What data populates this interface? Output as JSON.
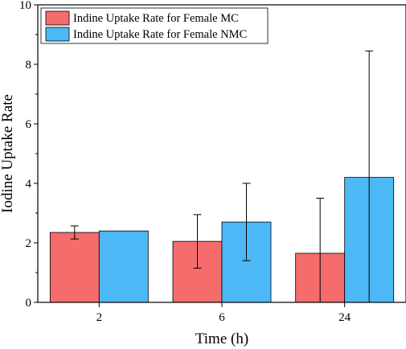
{
  "chart_data": {
    "type": "bar",
    "title": "",
    "xlabel": "Time (h)",
    "ylabel": "Iodine Uptake Rate",
    "categories": [
      "2",
      "6",
      "24"
    ],
    "ylim": [
      0,
      10
    ],
    "yticks": [
      "0",
      "2",
      "4",
      "6",
      "8",
      "10"
    ],
    "grid": false,
    "legend_position": "top-left",
    "series": [
      {
        "name": "Indine Uptake Rate for Female MC",
        "color": "#f46c6c",
        "values": [
          2.35,
          2.05,
          1.65
        ],
        "error": [
          0.22,
          0.9,
          1.85
        ]
      },
      {
        "name": "Indine Uptake Rate for Female NMC",
        "color": "#4cb8f6",
        "values": [
          2.4,
          2.7,
          4.2
        ],
        "error": [
          0.0,
          1.3,
          4.25
        ]
      }
    ]
  }
}
